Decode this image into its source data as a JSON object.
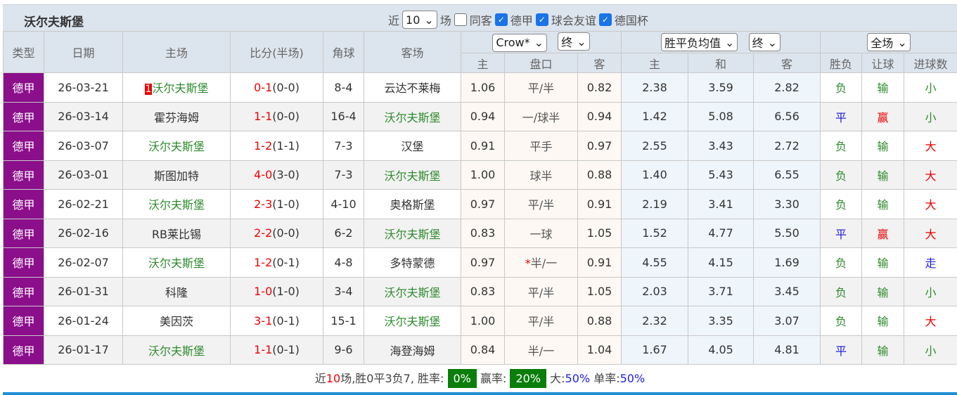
{
  "title": "沃尔夫斯堡",
  "filters": {
    "near_label": "近",
    "count": "10",
    "games_label": "场",
    "same_away": "同客",
    "leagues": [
      "德甲",
      "球会友谊",
      "德国杯"
    ]
  },
  "headers": {
    "type": "类型",
    "date": "日期",
    "home": "主场",
    "score": "比分(半场)",
    "corners": "角球",
    "away": "客场",
    "ah_company": "Crow*",
    "ah_stage": "终",
    "eu_type": "胜平负均值",
    "eu_stage": "终",
    "scope": "全场",
    "ah_sub": [
      "主",
      "盘口",
      "客"
    ],
    "eu_sub": [
      "主",
      "和",
      "客"
    ],
    "res_sub": [
      "胜负",
      "让球",
      "进球数"
    ]
  },
  "rows": [
    [
      "德甲",
      "26-03-21",
      "沃尔夫斯堡",
      "0-1",
      "(0-0)",
      "8-4",
      "云达不莱梅",
      "1.06",
      "平/半",
      "0.82",
      "2.38",
      "3.59",
      "2.82",
      "负",
      "输",
      "小"
    ],
    [
      "德甲",
      "26-03-14",
      "霍芬海姆",
      "1-1",
      "(0-0)",
      "16-4",
      "沃尔夫斯堡",
      "0.94",
      "一/球半",
      "0.94",
      "1.42",
      "5.08",
      "6.56",
      "平",
      "赢",
      "小"
    ],
    [
      "德甲",
      "26-03-07",
      "沃尔夫斯堡",
      "1-2",
      "(1-1)",
      "7-3",
      "汉堡",
      "0.91",
      "平手",
      "0.97",
      "2.55",
      "3.43",
      "2.72",
      "负",
      "输",
      "大"
    ],
    [
      "德甲",
      "26-03-01",
      "斯图加特",
      "4-0",
      "(3-0)",
      "7-3",
      "沃尔夫斯堡",
      "1.00",
      "球半",
      "0.88",
      "1.40",
      "5.43",
      "6.55",
      "负",
      "输",
      "大"
    ],
    [
      "德甲",
      "26-02-21",
      "沃尔夫斯堡",
      "2-3",
      "(1-0)",
      "4-10",
      "奥格斯堡",
      "0.97",
      "平/半",
      "0.91",
      "2.19",
      "3.41",
      "3.30",
      "负",
      "输",
      "大"
    ],
    [
      "德甲",
      "26-02-16",
      "RB莱比锡",
      "2-2",
      "(0-0)",
      "6-2",
      "沃尔夫斯堡",
      "0.83",
      "一球",
      "1.05",
      "1.52",
      "4.77",
      "5.50",
      "平",
      "赢",
      "大"
    ],
    [
      "德甲",
      "26-02-07",
      "沃尔夫斯堡",
      "1-2",
      "(0-1)",
      "4-8",
      "多特蒙德",
      "0.97",
      "*半/一",
      "0.91",
      "4.55",
      "4.15",
      "1.69",
      "负",
      "输",
      "走"
    ],
    [
      "德甲",
      "26-01-31",
      "科隆",
      "1-0",
      "(1-0)",
      "3-4",
      "沃尔夫斯堡",
      "0.83",
      "平/半",
      "1.05",
      "2.03",
      "3.71",
      "3.45",
      "负",
      "输",
      "小"
    ],
    [
      "德甲",
      "26-01-24",
      "美因茨",
      "3-1",
      "(0-1)",
      "15-1",
      "沃尔夫斯堡",
      "1.00",
      "平/半",
      "0.88",
      "2.32",
      "3.35",
      "3.07",
      "负",
      "输",
      "大"
    ],
    [
      "德甲",
      "26-01-17",
      "沃尔夫斯堡",
      "1-1",
      "(0-1)",
      "9-6",
      "海登海姆",
      "0.84",
      "半/一",
      "1.04",
      "1.67",
      "4.05",
      "4.81",
      "平",
      "输",
      "小"
    ]
  ],
  "first_row_rank": "1",
  "footer": {
    "near": "近",
    "n": "10",
    "summary": "场,胜0平3负7, 胜率:",
    "win_rate": "0%",
    "ying_label": "赢率:",
    "ying_rate": "20%",
    "big_label": "大:",
    "big_rate": "50%",
    "odd_label": "单率:",
    "odd_rate": "50%"
  },
  "colors": {
    "league": "#8b0e8b",
    "green": "#2e8b2e",
    "red": "#e00000",
    "blue": "#2222dd",
    "badge": "#0a7d0a"
  }
}
